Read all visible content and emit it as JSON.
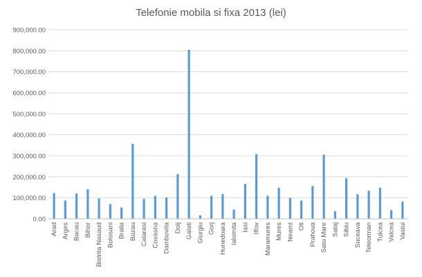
{
  "chart_data": {
    "type": "bar",
    "title": "Telefonie mobila si fixa 2013 (lei)",
    "xlabel": "",
    "ylabel": "",
    "ylim": [
      0,
      900000
    ],
    "yticks": [
      0,
      100000,
      200000,
      300000,
      400000,
      500000,
      600000,
      700000,
      800000,
      900000
    ],
    "ytick_labels": [
      "0.00",
      "100,000.00",
      "200,000.00",
      "300,000.00",
      "400,000.00",
      "500,000.00",
      "600,000.00",
      "700,000.00",
      "800,000.00",
      "900,000.00"
    ],
    "grid": true,
    "legend": "none",
    "bar_color": "#5b9bd5",
    "categories": [
      "Arad",
      "Arges",
      "Bacau",
      "Bihor",
      "Bistrita Nasaud",
      "Botosani",
      "Braila",
      "Buzau",
      "Calarasi",
      "Covasna",
      "Dambovita",
      "Dolj",
      "Galati",
      "Giurgiu",
      "Gorj",
      "Hunedoara",
      "Ialomita",
      "Iasi",
      "Ilfov",
      "Maramures",
      "Mures",
      "Neamt",
      "Olt",
      "Prahova",
      "Satu Mare",
      "Salaj",
      "Sibiu",
      "Suceava",
      "Teleorman",
      "Tulcea",
      "Valcea",
      "Vaslui"
    ],
    "values": [
      123000,
      87000,
      121000,
      141000,
      97000,
      70000,
      54000,
      357000,
      95000,
      110000,
      102000,
      213000,
      805000,
      17000,
      110000,
      118000,
      44000,
      166000,
      308000,
      110000,
      148000,
      100000,
      87000,
      156000,
      305000,
      36000,
      193000,
      117000,
      134000,
      148000,
      42000,
      82000
    ]
  }
}
